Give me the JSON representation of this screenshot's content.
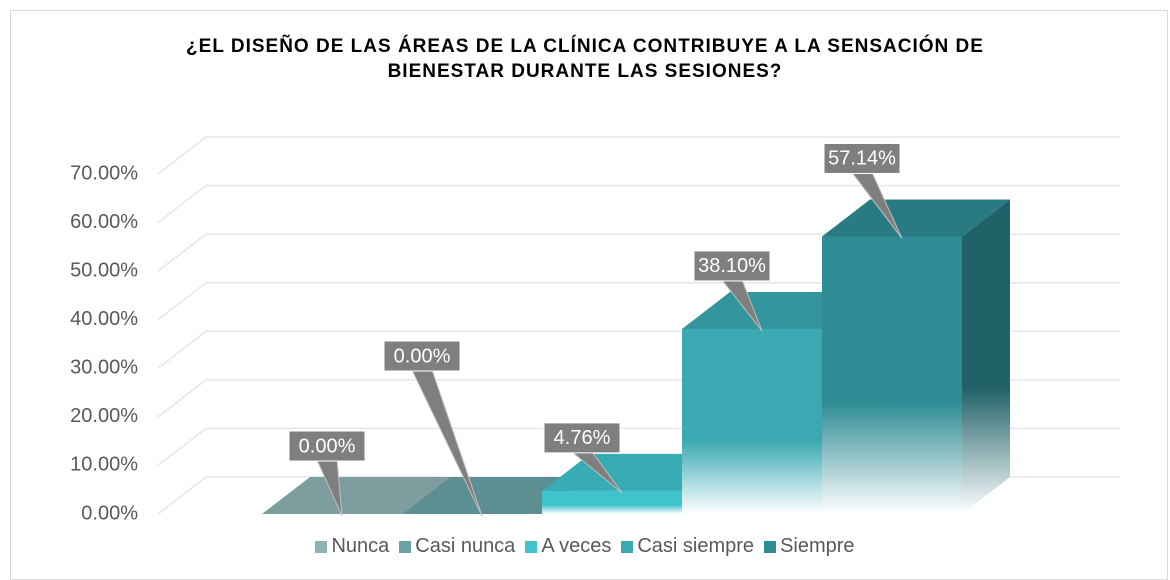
{
  "chart_data": {
    "type": "bar3d",
    "title": "¿EL DISEÑO DE LAS ÁREAS DE LA CLÍNICA CONTRIBUYE A LA SENSACIÓN DE BIENESTAR DURANTE LAS SESIONES?",
    "categories": [
      "Nunca",
      "Casi nunca",
      "A veces",
      "Casi siempre",
      "Siempre"
    ],
    "values": [
      0,
      0,
      4.76,
      38.1,
      57.14
    ],
    "value_labels": [
      "0.00%",
      "0.00%",
      "4.76%",
      "38.10%",
      "57.14%"
    ],
    "colors": [
      "#8fb2b5",
      "#6aa2a6",
      "#3fc3cc",
      "#3aa9b2",
      "#2f8c95"
    ],
    "ylim": [
      0,
      70
    ],
    "yticks": [
      {
        "value": 0,
        "label": "0.00%"
      },
      {
        "value": 10,
        "label": "10.00%"
      },
      {
        "value": 20,
        "label": "20.00%"
      },
      {
        "value": 30,
        "label": "30.00%"
      },
      {
        "value": 40,
        "label": "40.00%"
      },
      {
        "value": 50,
        "label": "50.00%"
      },
      {
        "value": 60,
        "label": "60.00%"
      },
      {
        "value": 70,
        "label": "70.00%"
      }
    ],
    "grid": true
  }
}
